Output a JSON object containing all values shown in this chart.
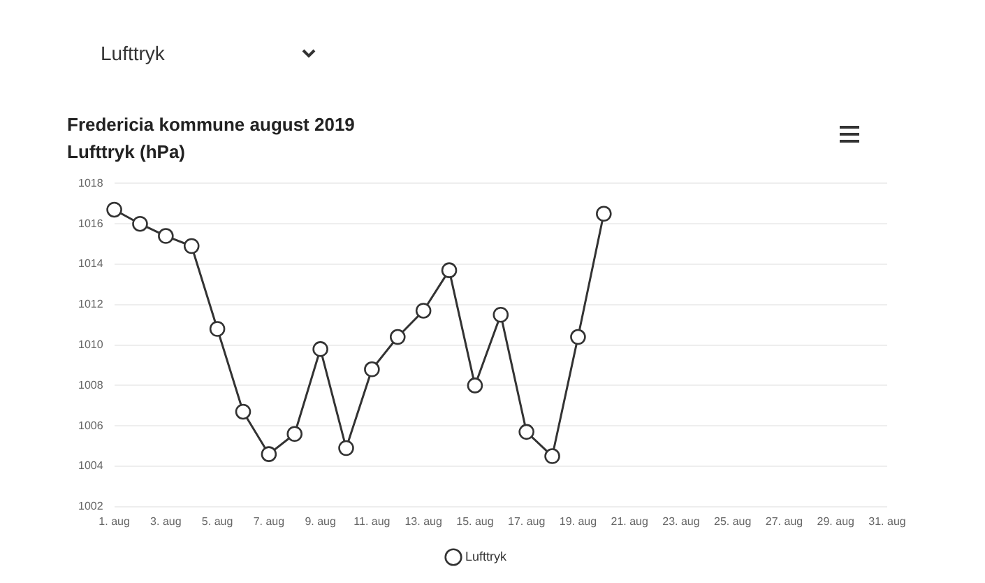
{
  "chart_data": {
    "type": "line",
    "title": "Fredericia kommune august 2019",
    "subtitle": "Lufttryk (hPa)",
    "annotations": [
      "Lufttryk"
    ],
    "categories": [
      "1. aug",
      null,
      "3. aug",
      null,
      "5. aug",
      null,
      "7. aug",
      null,
      "9. aug",
      null,
      "11. aug",
      null,
      "13. aug",
      null,
      "15. aug",
      null,
      "17. aug",
      null,
      "19. aug",
      null,
      "21. aug",
      null,
      "23. aug",
      null,
      "25. aug",
      null,
      "27. aug",
      null,
      "29. aug",
      null,
      "31. aug"
    ],
    "series": [
      {
        "name": "Lufttryk",
        "color": "#333333",
        "values": [
          1016.7,
          1016.0,
          1015.4,
          1014.9,
          1010.8,
          1006.7,
          1004.6,
          1005.6,
          1009.8,
          1004.9,
          1008.8,
          1010.4,
          1011.7,
          1013.7,
          1008.0,
          1011.5,
          1005.7,
          1004.5,
          1010.4,
          1016.5,
          null,
          null,
          null,
          null,
          null,
          null,
          null,
          null,
          null,
          null,
          null
        ]
      }
    ],
    "ylim": [
      1002,
      1018
    ],
    "yticks": [
      1002,
      1004,
      1006,
      1008,
      1010,
      1012,
      1014,
      1016,
      1018
    ],
    "grid": "y",
    "legend": "bottom",
    "marker": "circle",
    "line_style": "solid"
  }
}
